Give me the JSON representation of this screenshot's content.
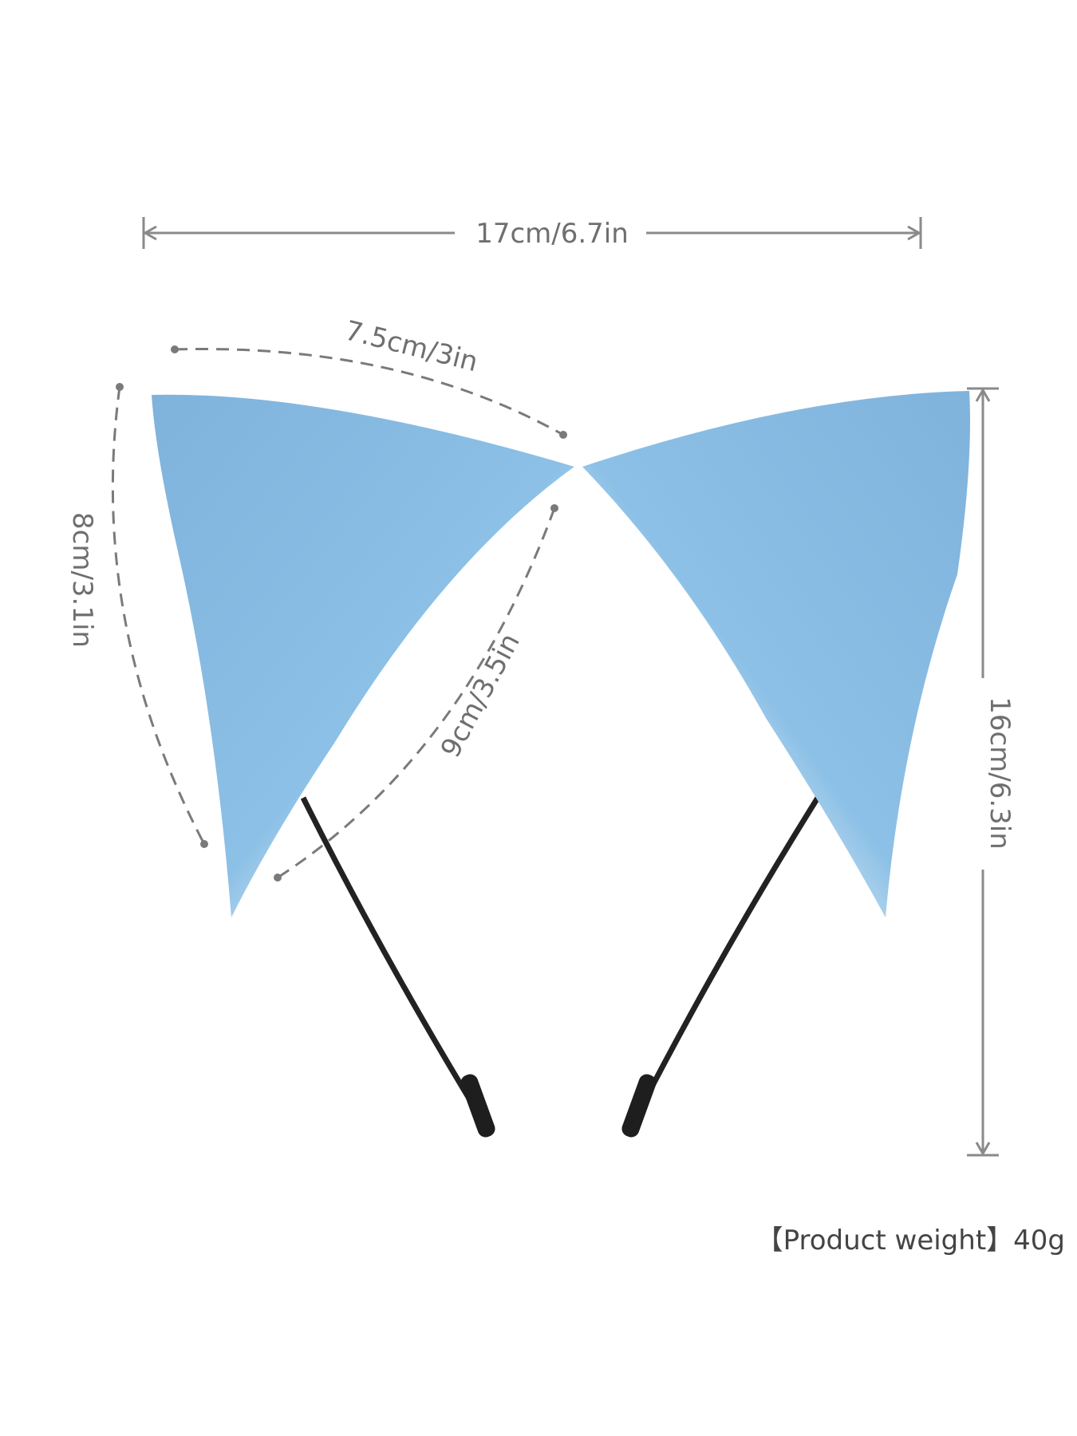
{
  "dimensions": {
    "width": "17cm/6.7in",
    "top_edge": "7.5cm/3in",
    "outer_edge": "8cm/3.1in",
    "inner_edge": "9cm/3.5in",
    "height": "16cm/6.3in"
  },
  "product_weight": "【Product weight】40g"
}
